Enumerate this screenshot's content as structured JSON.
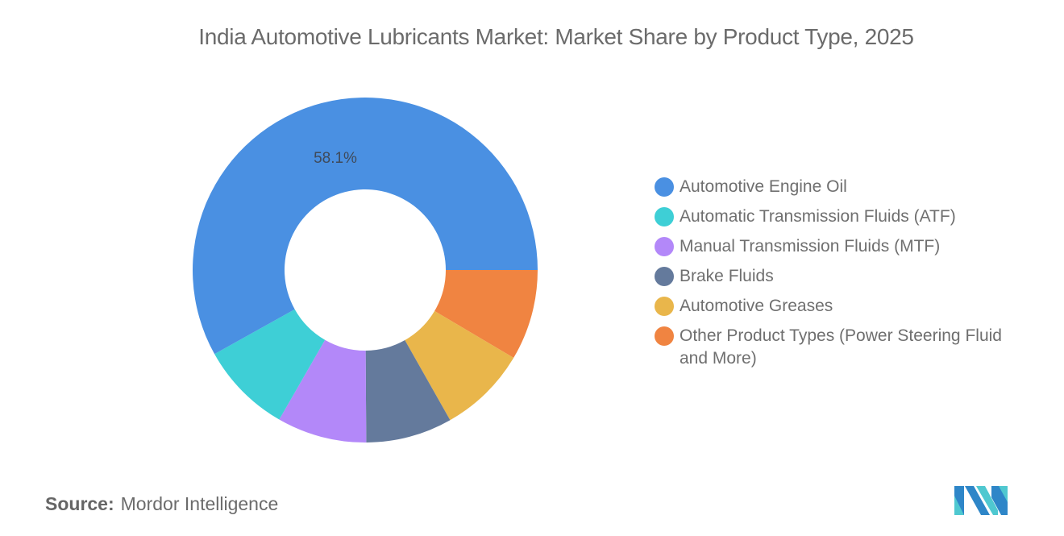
{
  "title": "India Automotive Lubricants Market: Market Share by Product Type, 2025",
  "source": {
    "label": "Source:",
    "value": "Mordor Intelligence"
  },
  "logo": "mordor-intelligence-logo",
  "chart_data": {
    "type": "pie",
    "variant": "donut",
    "title": "India Automotive Lubricants Market: Market Share by Product Type, 2025",
    "categories": [
      "Automotive Engine Oil",
      "Automatic Transmission Fluids (ATF)",
      "Manual Transmission Fluids (MTF)",
      "Brake Fluids",
      "Automotive Greases",
      "Other Product Types (Power Steering Fluid and More)"
    ],
    "values": [
      58.1,
      8.6,
      8.4,
      8.1,
      8.3,
      8.5
    ],
    "colors": [
      "#4a90e2",
      "#3ecfd6",
      "#b388f9",
      "#647a9c",
      "#e9b64b",
      "#f08441"
    ],
    "data_labels": [
      {
        "category": "Automotive Engine Oil",
        "text": "58.1%"
      }
    ],
    "legend_position": "right",
    "unit": "%"
  },
  "legend": {
    "items": [
      {
        "label": "Automotive Engine Oil",
        "color": "#4a90e2"
      },
      {
        "label": "Automatic Transmission Fluids (ATF)",
        "color": "#3ecfd6"
      },
      {
        "label": "Manual Transmission Fluids (MTF)",
        "color": "#b388f9"
      },
      {
        "label": "Brake Fluids",
        "color": "#647a9c"
      },
      {
        "label": "Automotive Greases",
        "color": "#e9b64b"
      },
      {
        "label": "Other Product Types (Power Steering Fluid and More)",
        "color": "#f08441"
      }
    ]
  },
  "highlight_label": "58.1%"
}
